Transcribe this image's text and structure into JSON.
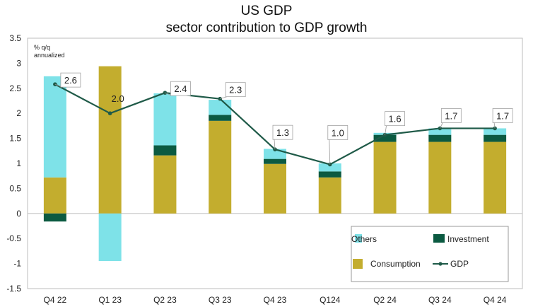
{
  "chart_data": {
    "type": "bar",
    "title": "US GDP",
    "subtitle": "sector contribution to GDP growth",
    "ylabel": "% q/q annualized",
    "ylabel_lines": [
      "% q/q",
      "annualized"
    ],
    "xlabel": "",
    "ylim": [
      -1.5,
      3.5
    ],
    "yticks": [
      3.5,
      3,
      2.5,
      2,
      1.5,
      1,
      0.5,
      0,
      -0.5,
      -1,
      -1.5
    ],
    "categories": [
      "Q4 22",
      "Q1 23",
      "Q2 23",
      "Q3 23",
      "Q4 23",
      "Q124",
      "Q2 24",
      "Q3 24",
      "Q4 24"
    ],
    "series": [
      {
        "name": "Consumption",
        "kind": "stacked-bar",
        "color": "#c3ad2e",
        "values": [
          0.72,
          2.94,
          1.16,
          1.85,
          0.99,
          0.72,
          1.43,
          1.43,
          1.43
        ]
      },
      {
        "name": "Investment",
        "kind": "stacked-bar",
        "color": "#0b5a41",
        "values": [
          -0.16,
          0,
          0.2,
          0.12,
          0.1,
          0.12,
          0.14,
          0.14,
          0.14
        ]
      },
      {
        "name": "Others",
        "kind": "stacked-bar",
        "color": "#7ee2e8",
        "values": [
          2.02,
          -0.95,
          1.04,
          0.3,
          0.2,
          0.16,
          0.04,
          0.13,
          0.13
        ]
      },
      {
        "name": "GDP",
        "kind": "line",
        "color": "#1f5a48",
        "values": [
          2.58,
          2.0,
          2.41,
          2.29,
          1.28,
          0.98,
          1.57,
          1.7,
          1.7
        ]
      }
    ],
    "data_labels": [
      "2.6",
      "2.0",
      "2.4",
      "2.3",
      "1.3",
      "1.0",
      "1.6",
      "1.7",
      "1.7"
    ],
    "legend": {
      "placement": "bottom-right",
      "entries": [
        {
          "name": "Others",
          "symbol": "bar",
          "color": "#7ee2e8"
        },
        {
          "name": "Investment",
          "symbol": "bar",
          "color": "#0b5a41"
        },
        {
          "name": "Consumption",
          "symbol": "bar",
          "color": "#c3ad2e"
        },
        {
          "name": "GDP",
          "symbol": "line-marker",
          "color": "#1f5a48"
        }
      ]
    },
    "grid": false
  }
}
